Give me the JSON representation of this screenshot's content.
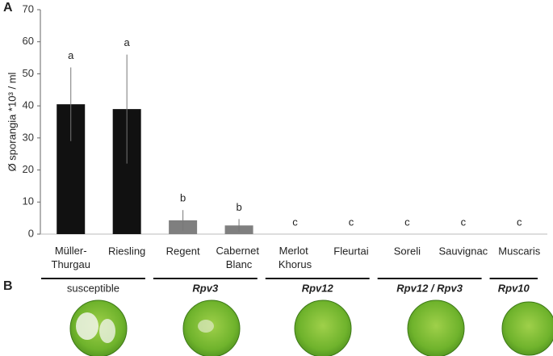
{
  "chart_data": {
    "type": "bar",
    "panel_labels": [
      "A",
      "B"
    ],
    "ylabel": "Ø sporangia *10³ / ml",
    "categories": [
      "Müller-Thurgau",
      "Riesling",
      "Regent",
      "Cabernet Blanc",
      "Merlot Khorus",
      "Fleurtai",
      "Soreli",
      "Sauvignac",
      "Muscaris"
    ],
    "values": [
      40.5,
      39,
      4.3,
      2.7,
      0,
      0,
      0,
      0,
      0
    ],
    "errors": [
      11.5,
      17,
      3.2,
      2,
      0,
      0,
      0,
      0,
      0
    ],
    "colors": [
      "#111111",
      "#111111",
      "#7f7f7f",
      "#7f7f7f",
      "#7f7f7f",
      "#7f7f7f",
      "#7f7f7f",
      "#7f7f7f",
      "#7f7f7f"
    ],
    "significance": [
      "a",
      "a",
      "b",
      "b",
      "c",
      "c",
      "c",
      "c",
      "c"
    ],
    "groups": [
      {
        "label": "susceptible",
        "count": 2,
        "italic": false
      },
      {
        "label": "Rpv3",
        "count": 2,
        "italic": true
      },
      {
        "label": "Rpv12",
        "count": 2,
        "italic": true
      },
      {
        "label": "Rpv12 / Rpv3",
        "count": 2,
        "italic": true
      },
      {
        "label": "Rpv10",
        "count": 1,
        "italic": true
      }
    ],
    "ylim": [
      0,
      70
    ],
    "yticks": [
      0,
      10,
      20,
      30,
      40,
      50,
      60,
      70
    ]
  }
}
